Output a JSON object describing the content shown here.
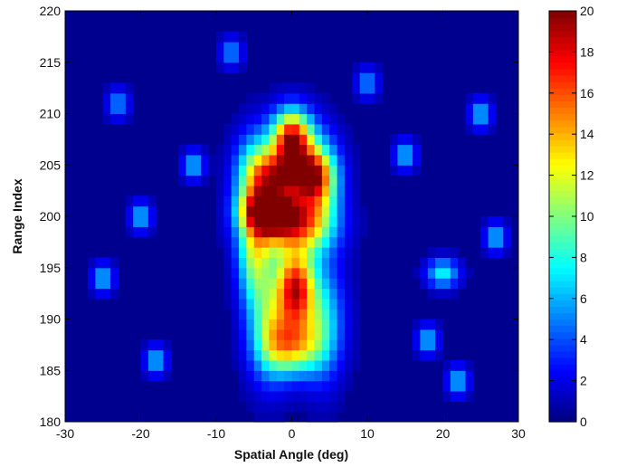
{
  "chart_data": {
    "type": "heatmap",
    "xlabel": "Spatial Angle (deg)",
    "ylabel": "Range Index",
    "xlim": [
      -30,
      30
    ],
    "ylim": [
      180,
      220
    ],
    "x_ticks": [
      -30,
      -20,
      -10,
      0,
      10,
      20,
      30
    ],
    "x_tick_labels": [
      "-30",
      "-20",
      "-10",
      "0",
      "10",
      "20",
      "30"
    ],
    "y_ticks": [
      180,
      185,
      190,
      195,
      200,
      205,
      210,
      215,
      220
    ],
    "y_tick_labels": [
      "180",
      "185",
      "190",
      "195",
      "200",
      "205",
      "210",
      "215",
      "220"
    ],
    "colorbar": {
      "colormap": "jet",
      "range": [
        0,
        20
      ],
      "ticks": [
        0,
        2,
        4,
        6,
        8,
        10,
        12,
        14,
        16,
        18,
        20
      ],
      "tick_labels": [
        "0",
        "2",
        "4",
        "6",
        "8",
        "10",
        "12",
        "14",
        "16",
        "18",
        "20"
      ]
    },
    "grid": false,
    "background_level": 0.5,
    "features": [
      {
        "angle": 0.0,
        "range": 207.5,
        "value": 18,
        "w_angle": 1.8,
        "w_range": 2.0
      },
      {
        "angle": -2.5,
        "range": 200.5,
        "value": 15,
        "w_angle": 2.5,
        "w_range": 1.3
      },
      {
        "angle": 0.5,
        "range": 193.0,
        "value": 16,
        "w_angle": 1.7,
        "w_range": 2.5
      },
      {
        "angle": 0.0,
        "range": 187.5,
        "value": 11,
        "w_angle": 2.5,
        "w_range": 2.0
      },
      {
        "angle": -4.5,
        "range": 203.5,
        "value": 12,
        "w_angle": 2.0,
        "w_range": 3.0
      },
      {
        "angle": 3.5,
        "range": 203.5,
        "value": 11,
        "w_angle": 2.0,
        "w_range": 3.0
      },
      {
        "angle": 0.0,
        "range": 199.0,
        "value": 13,
        "w_angle": 3.5,
        "w_range": 2.0
      },
      {
        "angle": -1.5,
        "range": 204.0,
        "value": 10,
        "w_angle": 2.0,
        "w_range": 1.5
      },
      {
        "angle": 2.0,
        "range": 204.0,
        "value": 10,
        "w_angle": 2.0,
        "w_range": 1.5
      },
      {
        "angle": -3.0,
        "range": 190.0,
        "value": 8,
        "w_angle": 2.0,
        "w_range": 4.0
      },
      {
        "angle": 4.0,
        "range": 190.0,
        "value": 7,
        "w_angle": 2.0,
        "w_range": 4.0
      },
      {
        "angle": -5.0,
        "range": 196.0,
        "value": 8,
        "w_angle": 1.5,
        "w_range": 3.0
      },
      {
        "angle": -20.0,
        "range": 200.0,
        "value": 6,
        "w_angle": 1.0,
        "w_range": 1.0
      },
      {
        "angle": -13.0,
        "range": 205.0,
        "value": 6,
        "w_angle": 1.0,
        "w_range": 1.0
      },
      {
        "angle": -25.0,
        "range": 194.0,
        "value": 6,
        "w_angle": 1.0,
        "w_range": 1.0
      },
      {
        "angle": 20.0,
        "range": 194.5,
        "value": 7,
        "w_angle": 1.5,
        "w_range": 1.0
      },
      {
        "angle": 15.0,
        "range": 206.0,
        "value": 6,
        "w_angle": 1.0,
        "w_range": 1.0
      },
      {
        "angle": 25.0,
        "range": 210.0,
        "value": 6,
        "w_angle": 1.0,
        "w_range": 1.0
      },
      {
        "angle": -18.0,
        "range": 186.0,
        "value": 6,
        "w_angle": 1.0,
        "w_range": 1.0
      },
      {
        "angle": 22.0,
        "range": 184.0,
        "value": 6,
        "w_angle": 1.0,
        "w_range": 1.0
      },
      {
        "angle": 10.0,
        "range": 213.0,
        "value": 5,
        "w_angle": 1.0,
        "w_range": 1.0
      },
      {
        "angle": -8.0,
        "range": 216.0,
        "value": 5,
        "w_angle": 1.0,
        "w_range": 1.0
      },
      {
        "angle": 27.0,
        "range": 198.0,
        "value": 6,
        "w_angle": 1.0,
        "w_range": 1.0
      },
      {
        "angle": 18.0,
        "range": 188.0,
        "value": 6,
        "w_angle": 1.0,
        "w_range": 1.0
      },
      {
        "angle": -23.0,
        "range": 211.0,
        "value": 5,
        "w_angle": 1.0,
        "w_range": 1.0
      }
    ]
  }
}
